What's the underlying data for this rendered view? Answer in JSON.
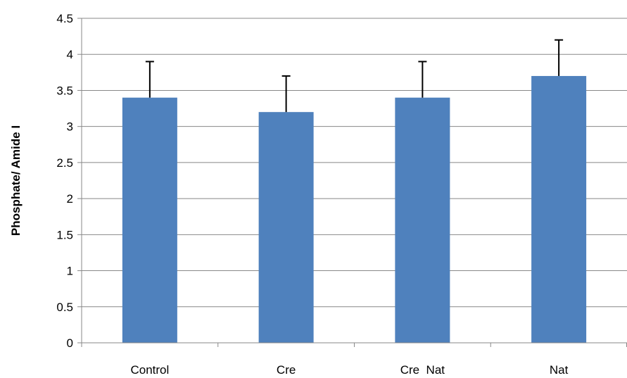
{
  "chart_data": {
    "type": "bar",
    "title": "",
    "xlabel": "",
    "ylabel": "Phosphate/ Amide I",
    "categories": [
      "Control",
      "Cre",
      "Cre  Nat",
      "Nat"
    ],
    "values": [
      3.4,
      3.2,
      3.4,
      3.7
    ],
    "error_plus": [
      0.5,
      0.5,
      0.5,
      0.5
    ],
    "ylim": [
      0,
      4.5
    ],
    "yticks": [
      0,
      0.5,
      1,
      1.5,
      2,
      2.5,
      3,
      3.5,
      4,
      4.5
    ],
    "ytick_labels": [
      "0",
      "0.5",
      "1",
      "1.5",
      "2",
      "2.5",
      "3",
      "3.5",
      "4",
      "4.5"
    ],
    "grid": true,
    "legend": "none",
    "bar_color": "#4F81BD",
    "gridline_color": "#888888",
    "error_bar_color": "#000000"
  }
}
